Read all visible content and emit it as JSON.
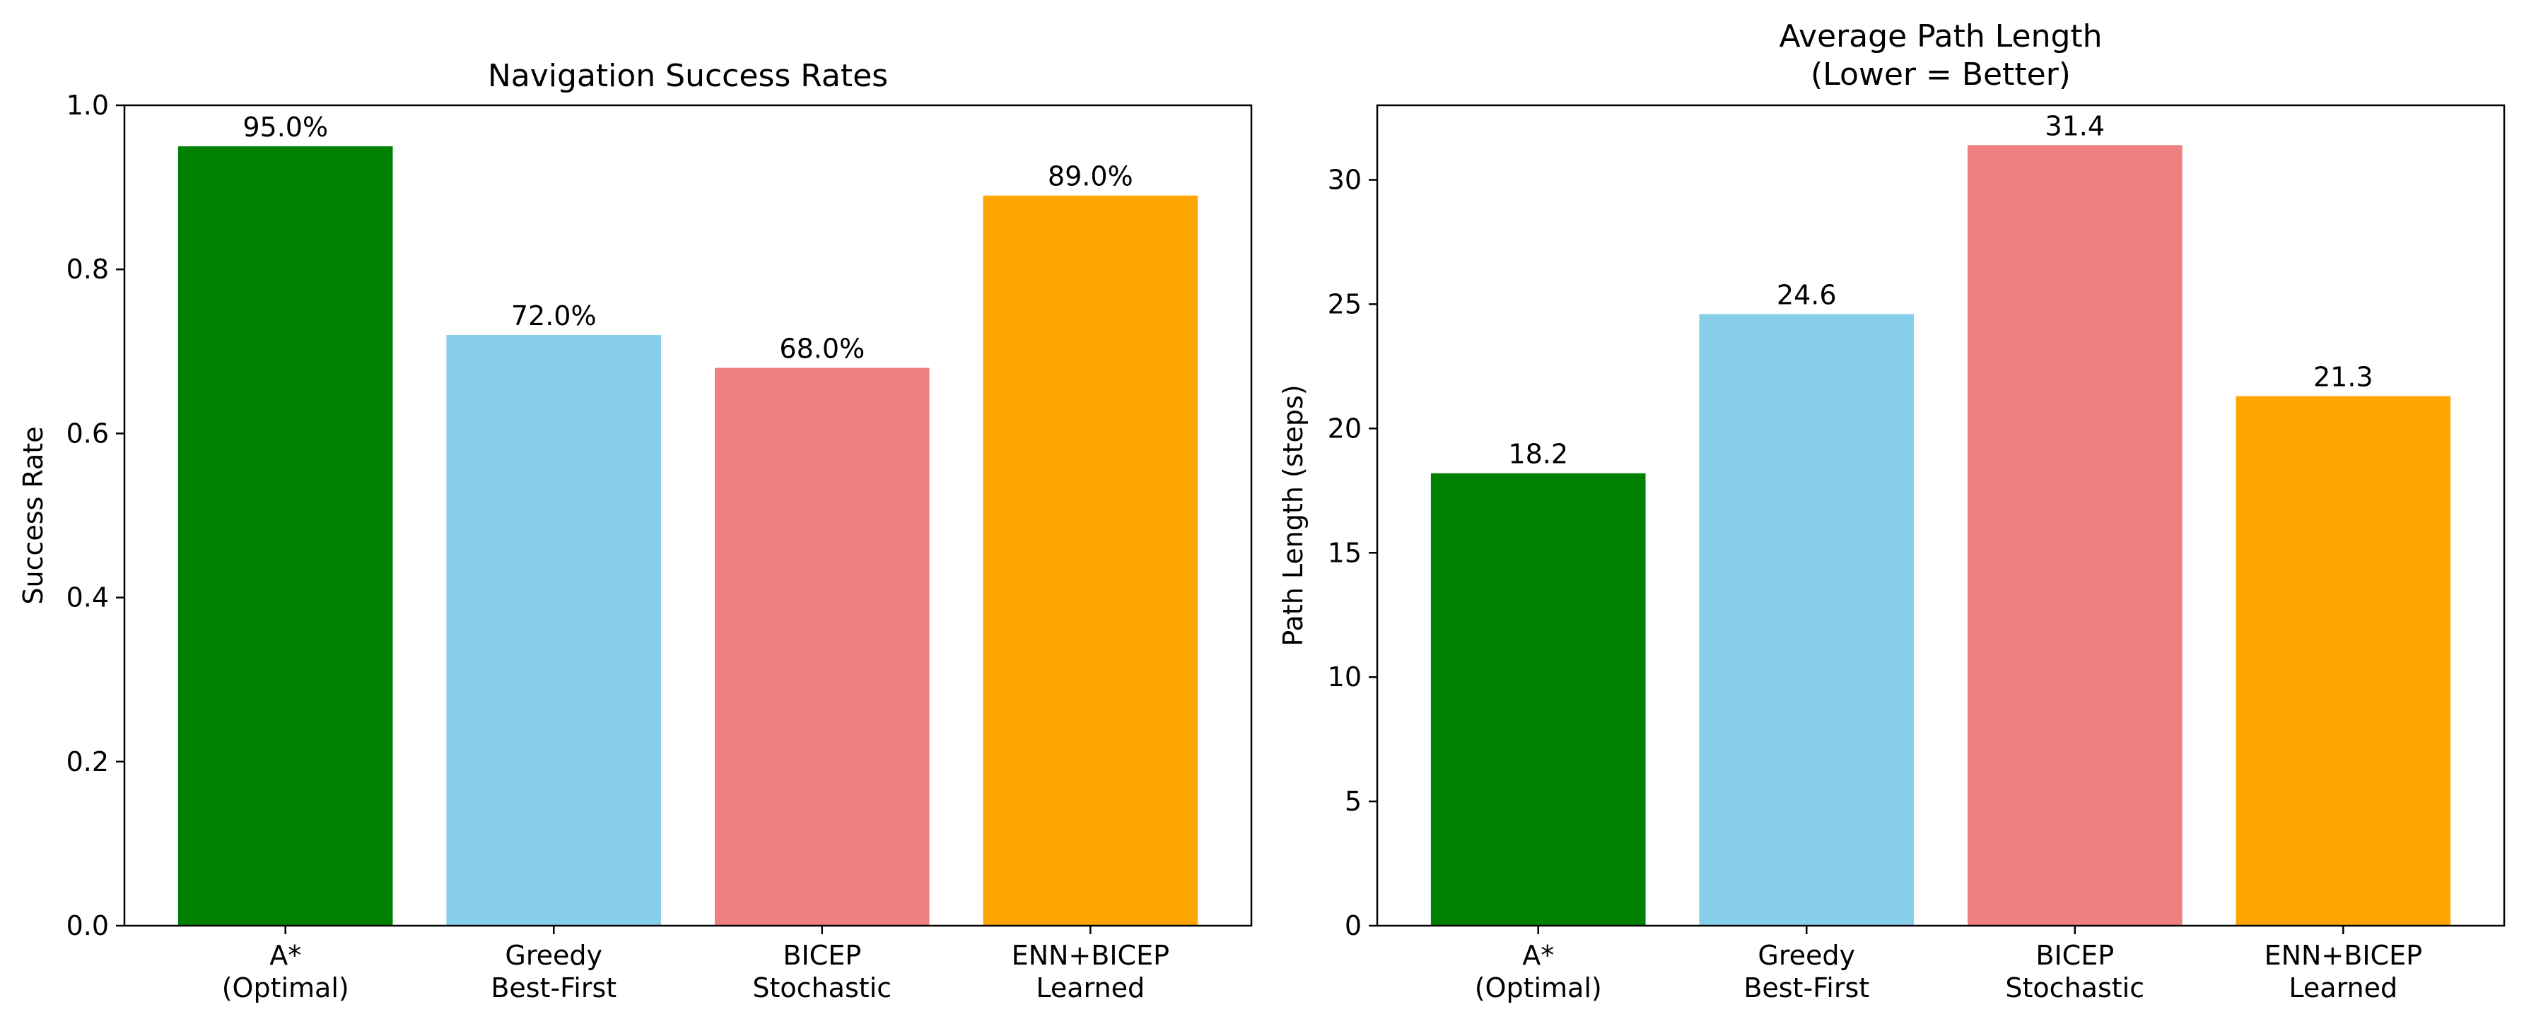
{
  "chart_data": [
    {
      "type": "bar",
      "title": "Navigation Success Rates",
      "xlabel": "",
      "ylabel": "Success Rate",
      "categories": [
        [
          "A*",
          "(Optimal)"
        ],
        [
          "Greedy",
          "Best-First"
        ],
        [
          "BICEP",
          "Stochastic"
        ],
        [
          "ENN+BICEP",
          "Learned"
        ]
      ],
      "values": [
        0.95,
        0.72,
        0.68,
        0.89
      ],
      "data_labels": [
        "95.0%",
        "72.0%",
        "68.0%",
        "89.0%"
      ],
      "colors": [
        "#008000",
        "#87CEEB",
        "#F08080",
        "#FFA500"
      ],
      "ylim": [
        0,
        1.0
      ],
      "yticks": [
        0.0,
        0.2,
        0.4,
        0.6,
        0.8,
        1.0
      ],
      "ytick_labels": [
        "0.0",
        "0.2",
        "0.4",
        "0.6",
        "0.8",
        "1.0"
      ],
      "grid": false,
      "legend": "none"
    },
    {
      "type": "bar",
      "title": [
        "Average Path Length",
        "(Lower = Better)"
      ],
      "xlabel": "",
      "ylabel": "Path Length (steps)",
      "categories": [
        [
          "A*",
          "(Optimal)"
        ],
        [
          "Greedy",
          "Best-First"
        ],
        [
          "BICEP",
          "Stochastic"
        ],
        [
          "ENN+BICEP",
          "Learned"
        ]
      ],
      "values": [
        18.2,
        24.6,
        31.4,
        21.3
      ],
      "data_labels": [
        "18.2",
        "24.6",
        "31.4",
        "21.3"
      ],
      "colors": [
        "#008000",
        "#87CEEB",
        "#F08080",
        "#FFA500"
      ],
      "ylim": [
        0,
        33
      ],
      "yticks": [
        0,
        5,
        10,
        15,
        20,
        25,
        30
      ],
      "ytick_labels": [
        "0",
        "5",
        "10",
        "15",
        "20",
        "25",
        "30"
      ],
      "grid": false,
      "legend": "none"
    }
  ]
}
